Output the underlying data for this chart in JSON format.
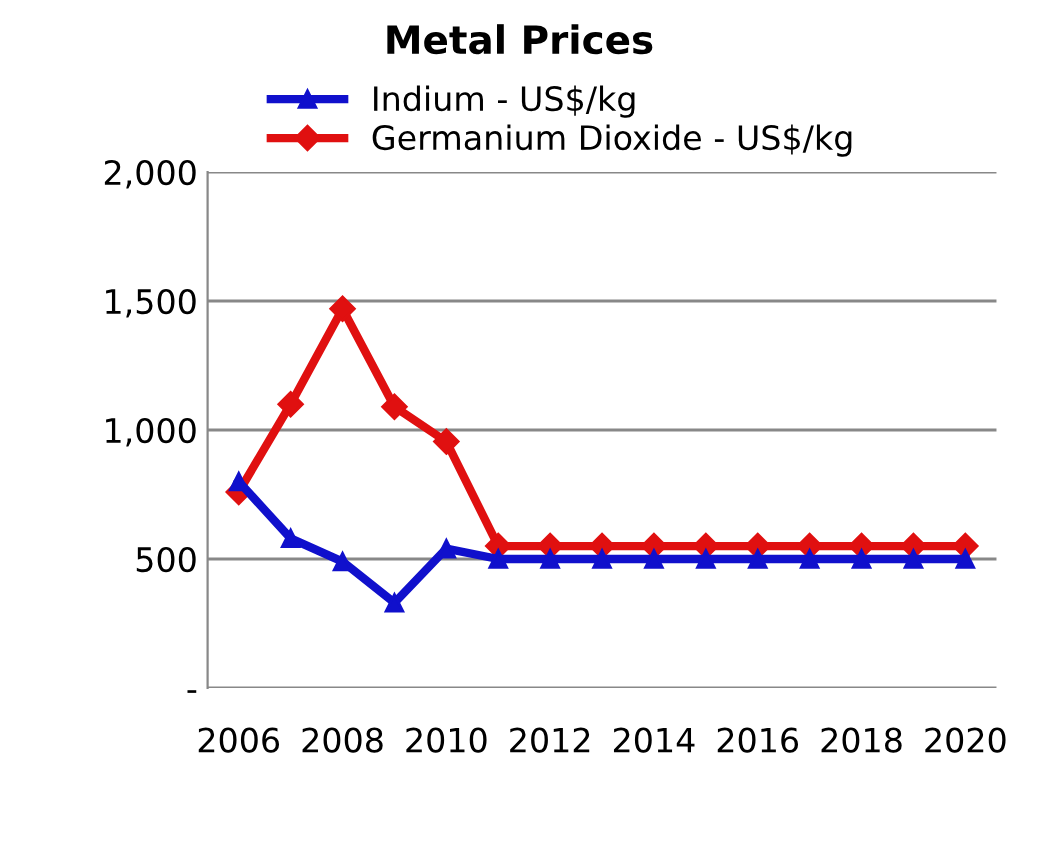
{
  "chart_data": {
    "type": "line",
    "title": "Metal Prices",
    "x": [
      2006,
      2007,
      2008,
      2009,
      2010,
      2011,
      2012,
      2013,
      2014,
      2015,
      2016,
      2017,
      2018,
      2019,
      2020
    ],
    "series": [
      {
        "name": "Indium - US$/kg",
        "color": "#1010cc",
        "marker": "triangle",
        "values": [
          800,
          580,
          490,
          330,
          540,
          500,
          500,
          500,
          500,
          500,
          500,
          500,
          500,
          500,
          500
        ]
      },
      {
        "name": "Germanium Dioxide - US$/kg",
        "color": "#e01010",
        "marker": "diamond",
        "values": [
          760,
          1100,
          1470,
          1090,
          955,
          550,
          550,
          550,
          550,
          550,
          550,
          550,
          550,
          550,
          550
        ]
      }
    ],
    "xlim": [
      2005.4,
      2020.6
    ],
    "xticks": [
      2006,
      2008,
      2010,
      2012,
      2014,
      2016,
      2018,
      2020
    ],
    "ylim": [
      0,
      2000
    ],
    "yticks": [
      {
        "value": 0,
        "label": "-"
      },
      {
        "value": 500,
        "label": "500"
      },
      {
        "value": 1000,
        "label": "1,000"
      },
      {
        "value": 1500,
        "label": "1,500"
      },
      {
        "value": 2000,
        "label": "2,000"
      }
    ],
    "grid": "y",
    "legend": "top",
    "line_style": "solid"
  }
}
